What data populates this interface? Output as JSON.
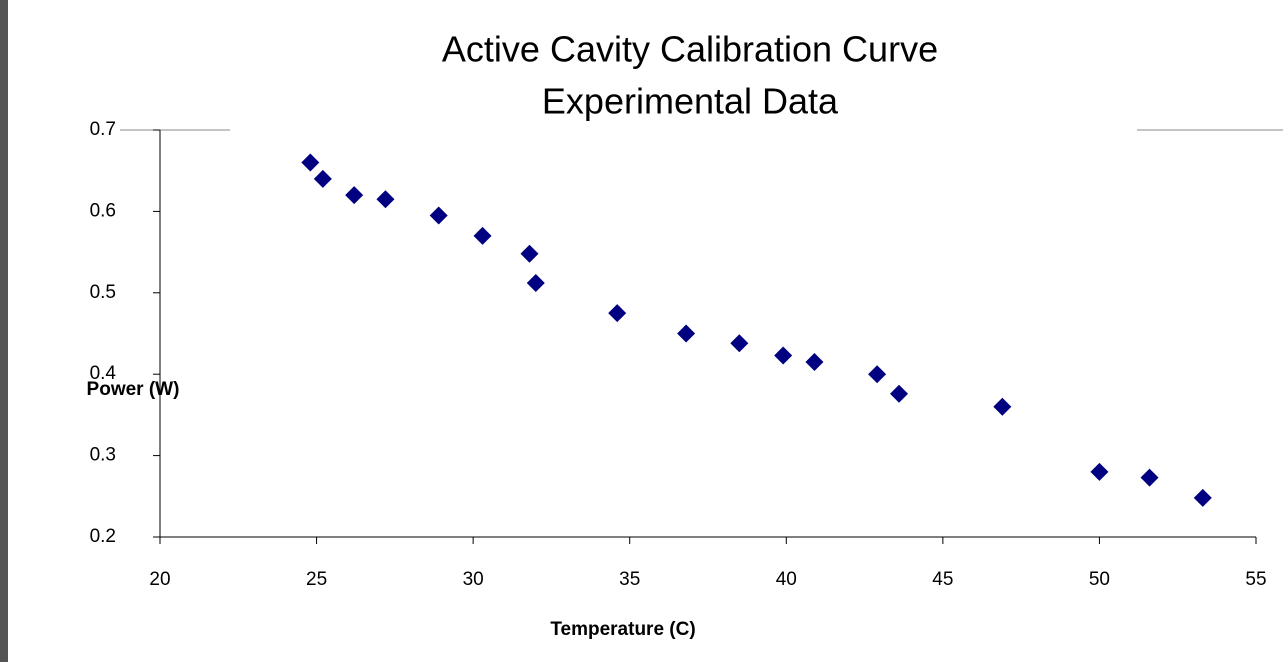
{
  "chart_data": {
    "type": "scatter",
    "title": [
      "Active Cavity Calibration Curve",
      "Experimental Data"
    ],
    "x_label": "Temperature (C)",
    "y_label": "Power (W)",
    "series": [
      {
        "color": "#000080",
        "x": [
          24.8,
          25.2,
          26.2,
          27.2,
          28.9,
          30.3,
          31.8,
          32.0,
          34.6,
          36.8,
          38.5,
          39.9,
          40.9,
          42.9,
          43.6,
          46.9,
          50.0,
          51.6,
          53.3
        ],
        "values": [
          0.66,
          0.64,
          0.62,
          0.615,
          0.595,
          0.57,
          0.548,
          0.512,
          0.475,
          0.45,
          0.438,
          0.423,
          0.415,
          0.4,
          0.376,
          0.36,
          0.28,
          0.273,
          0.248
        ]
      }
    ],
    "xlim": [
      20,
      55
    ],
    "xticks": [
      20,
      25,
      30,
      35,
      40,
      45,
      50,
      55
    ],
    "ylim": [
      0.2,
      0.7
    ],
    "yticks": [
      0.2,
      0.3,
      0.4,
      0.5,
      0.6,
      0.7
    ]
  }
}
